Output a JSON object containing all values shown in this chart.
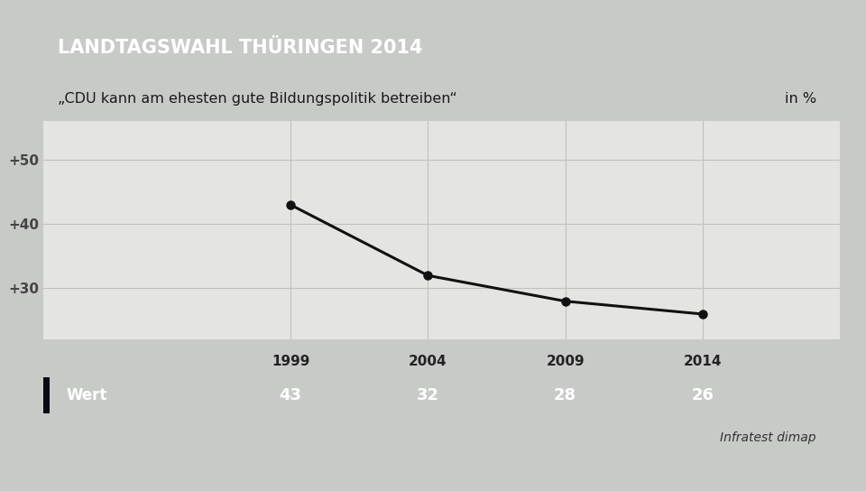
{
  "title": "LANDTAGSWAHL THÜRINGEN 2014",
  "subtitle": "„CDU kann am ehesten gute Bildungspolitik betreiben“",
  "subtitle_right": "in %",
  "years": [
    1999,
    2004,
    2009,
    2014
  ],
  "values": [
    43,
    32,
    28,
    26
  ],
  "yticks": [
    30,
    40,
    50
  ],
  "ytick_labels": [
    "+30",
    "+40",
    "+50"
  ],
  "ylim": [
    22,
    56
  ],
  "xlim": [
    1990,
    2019
  ],
  "table_row_label": "Wert",
  "source": "Infratest dimap",
  "bg_color": "#c8cac8",
  "plot_bg_color": "#e4e4e2",
  "header_bg_color": "#1a3a6e",
  "header_text_color": "#ffffff",
  "subtitle_bg_color": "#efefed",
  "subtitle_text_color": "#1a1a1a",
  "table_years_bg": "#efefed",
  "table_data_bg": "#4a7aaa",
  "table_label_bg": "#1a2a3a",
  "table_text_color": "#ffffff",
  "line_color": "#111111",
  "marker_color": "#111111",
  "grid_color": "#c0c0be",
  "tick_label_color": "#444444"
}
